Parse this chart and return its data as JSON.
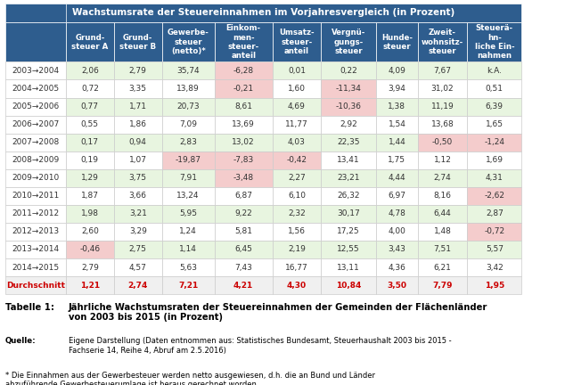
{
  "header_title": "Wachstumsrate der Steuereinnahmen im Vorjahresvergleich (in Prozent)",
  "col_headers": [
    "Grund-\nsteuer A",
    "Grund-\nsteuer B",
    "Gewerbe-\nsteuer\n(netto)*",
    "Einkom-\nmen-\nsteuer-\nanteil",
    "Umsatz-\nsteuer-\nanteil",
    "Vergnü-\ngungs-\nsteuer",
    "Hunde-\nsteuer",
    "Zweit-\nwohnsitz-\nsteuer",
    "Steuerä-\nhn-\nliche Ein-\nnahmen"
  ],
  "col_headers_display": [
    "Grund-\nsteuer A",
    "Grund-\nsteuer B",
    "Gewerbe-\nsteuer\n(netto)*",
    "Einkom-\nmen-\nsteuer-\nanteil",
    "Umsatz-\nsteuer-\nanteil",
    "Vergnü-\ngungs-\nsteuer",
    "Hunde-\nsteuer",
    "Zweit-\nwohnsitz-\nsteuer",
    "Steuerä-\nhn-\nliche\nEinnah-\nmen"
  ],
  "row_labels": [
    "2003→2004",
    "2004→2005",
    "2005→2006",
    "2006→2007",
    "2007→2008",
    "2008→2009",
    "2009→2010",
    "2010→2011",
    "2011→2012",
    "2012→2013",
    "2013→2014",
    "2014→2015",
    "Durchschnitt"
  ],
  "data": [
    [
      2.06,
      2.79,
      35.74,
      -6.28,
      0.01,
      0.22,
      4.09,
      7.67,
      null
    ],
    [
      0.72,
      3.35,
      13.89,
      -0.21,
      1.6,
      -11.34,
      3.94,
      31.02,
      0.51
    ],
    [
      0.77,
      1.71,
      20.73,
      8.61,
      4.69,
      -10.36,
      1.38,
      11.19,
      6.39
    ],
    [
      0.55,
      1.86,
      7.09,
      13.69,
      11.77,
      2.92,
      1.54,
      13.68,
      1.65
    ],
    [
      0.17,
      0.94,
      2.83,
      13.02,
      4.03,
      22.35,
      1.44,
      -0.5,
      -1.24
    ],
    [
      0.19,
      1.07,
      -19.87,
      -7.83,
      -0.42,
      13.41,
      1.75,
      1.12,
      1.69
    ],
    [
      1.29,
      3.75,
      7.91,
      -3.48,
      2.27,
      23.21,
      4.44,
      2.74,
      4.31
    ],
    [
      1.87,
      3.66,
      13.24,
      6.87,
      6.1,
      26.32,
      6.97,
      8.16,
      -2.62
    ],
    [
      1.98,
      3.21,
      5.95,
      9.22,
      2.32,
      30.17,
      4.78,
      6.44,
      2.87
    ],
    [
      2.6,
      3.29,
      1.24,
      5.81,
      1.56,
      17.25,
      4.0,
      1.48,
      -0.72
    ],
    [
      -0.46,
      2.75,
      1.14,
      6.45,
      2.19,
      12.55,
      3.43,
      7.51,
      5.57
    ],
    [
      2.79,
      4.57,
      5.63,
      7.43,
      16.77,
      13.11,
      4.36,
      6.21,
      3.42
    ],
    [
      1.21,
      2.74,
      7.21,
      4.21,
      4.3,
      10.84,
      3.5,
      7.79,
      1.95
    ]
  ],
  "data_str": [
    [
      "2,06",
      "2,79",
      "35,74",
      "-6,28",
      "0,01",
      "0,22",
      "4,09",
      "7,67",
      "k.A."
    ],
    [
      "0,72",
      "3,35",
      "13,89",
      "-0,21",
      "1,60",
      "-11,34",
      "3,94",
      "31,02",
      "0,51"
    ],
    [
      "0,77",
      "1,71",
      "20,73",
      "8,61",
      "4,69",
      "-10,36",
      "1,38",
      "11,19",
      "6,39"
    ],
    [
      "0,55",
      "1,86",
      "7,09",
      "13,69",
      "11,77",
      "2,92",
      "1,54",
      "13,68",
      "1,65"
    ],
    [
      "0,17",
      "0,94",
      "2,83",
      "13,02",
      "4,03",
      "22,35",
      "1,44",
      "-0,50",
      "-1,24"
    ],
    [
      "0,19",
      "1,07",
      "-19,87",
      "-7,83",
      "-0,42",
      "13,41",
      "1,75",
      "1,12",
      "1,69"
    ],
    [
      "1,29",
      "3,75",
      "7,91",
      "-3,48",
      "2,27",
      "23,21",
      "4,44",
      "2,74",
      "4,31"
    ],
    [
      "1,87",
      "3,66",
      "13,24",
      "6,87",
      "6,10",
      "26,32",
      "6,97",
      "8,16",
      "-2,62"
    ],
    [
      "1,98",
      "3,21",
      "5,95",
      "9,22",
      "2,32",
      "30,17",
      "4,78",
      "6,44",
      "2,87"
    ],
    [
      "2,60",
      "3,29",
      "1,24",
      "5,81",
      "1,56",
      "17,25",
      "4,00",
      "1,48",
      "-0,72"
    ],
    [
      "-0,46",
      "2,75",
      "1,14",
      "6,45",
      "2,19",
      "12,55",
      "3,43",
      "7,51",
      "5,57"
    ],
    [
      "2,79",
      "4,57",
      "5,63",
      "7,43",
      "16,77",
      "13,11",
      "4,36",
      "6,21",
      "3,42"
    ],
    [
      "1,21",
      "2,74",
      "7,21",
      "4,21",
      "4,30",
      "10,84",
      "3,50",
      "7,79",
      "1,95"
    ]
  ],
  "header_bg": "#2E5D8E",
  "header_fg": "#FFFFFF",
  "row_label_col": "#2E5D8E",
  "avg_row_bg": "#E8E8E8",
  "avg_row_fg": "#CC0000",
  "negative_bg": "#F4CCCC",
  "positive_light_bg": "#E8F5E0",
  "normal_bg": "#FFFFFF",
  "alt_row_bg": "#F5F5F5",
  "col_header_bg": "#2E5D8E",
  "title1": "Tabelle 1:",
  "title2": "Jährliche Wachstumsraten der Steuereinnahmen der Gemeinden der Flächenländer\nvon 2003 bis 2015 (in Prozent)",
  "source_label": "Quelle:",
  "source_text": "Eigene Darstellung (Daten entnommen aus: Statistisches Bundesamt, Steuerhaushalt 2003 bis 2015 -\nFachserie 14, Reihe 4, Abruf am 2.5.2016)",
  "footnote": "* Die Einnahmen aus der Gewerbesteuer werden netto ausgewiesen, d.h. die an Bund und Länder\nabzuführende Gewerbesteuerumlage ist heraus gerechnet worden."
}
